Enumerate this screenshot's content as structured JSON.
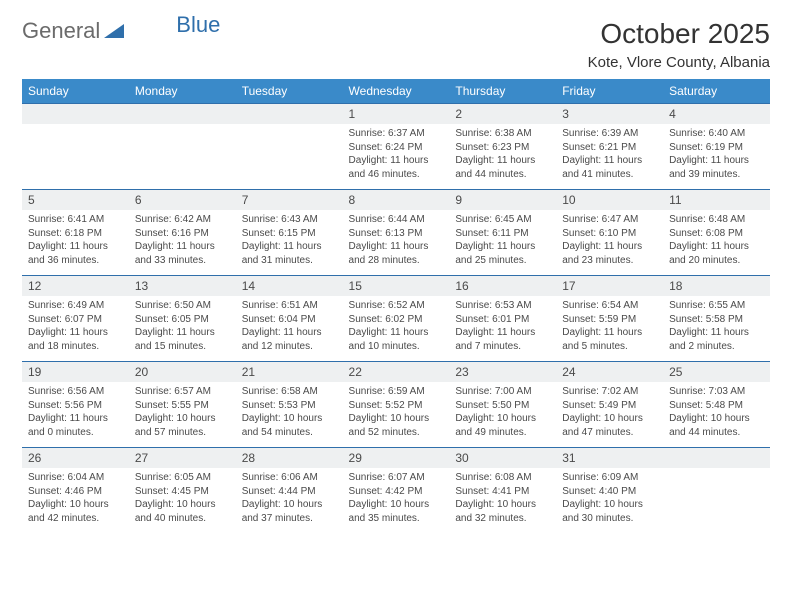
{
  "logo": {
    "word1": "General",
    "word2": "Blue"
  },
  "title": "October 2025",
  "location": "Kote, Vlore County, Albania",
  "colors": {
    "header_bg": "#3a8ac9",
    "header_text": "#ffffff",
    "daynum_bg": "#eef0f1",
    "border_top": "#2f6fab",
    "text": "#4a4a4a",
    "logo_gray": "#6b6b6b",
    "logo_blue": "#2f6fab"
  },
  "day_headers": [
    "Sunday",
    "Monday",
    "Tuesday",
    "Wednesday",
    "Thursday",
    "Friday",
    "Saturday"
  ],
  "weeks": [
    {
      "nums": [
        "",
        "",
        "",
        "1",
        "2",
        "3",
        "4"
      ],
      "cells": [
        null,
        null,
        null,
        {
          "sunrise": "Sunrise: 6:37 AM",
          "sunset": "Sunset: 6:24 PM",
          "day1": "Daylight: 11 hours",
          "day2": "and 46 minutes."
        },
        {
          "sunrise": "Sunrise: 6:38 AM",
          "sunset": "Sunset: 6:23 PM",
          "day1": "Daylight: 11 hours",
          "day2": "and 44 minutes."
        },
        {
          "sunrise": "Sunrise: 6:39 AM",
          "sunset": "Sunset: 6:21 PM",
          "day1": "Daylight: 11 hours",
          "day2": "and 41 minutes."
        },
        {
          "sunrise": "Sunrise: 6:40 AM",
          "sunset": "Sunset: 6:19 PM",
          "day1": "Daylight: 11 hours",
          "day2": "and 39 minutes."
        }
      ]
    },
    {
      "nums": [
        "5",
        "6",
        "7",
        "8",
        "9",
        "10",
        "11"
      ],
      "cells": [
        {
          "sunrise": "Sunrise: 6:41 AM",
          "sunset": "Sunset: 6:18 PM",
          "day1": "Daylight: 11 hours",
          "day2": "and 36 minutes."
        },
        {
          "sunrise": "Sunrise: 6:42 AM",
          "sunset": "Sunset: 6:16 PM",
          "day1": "Daylight: 11 hours",
          "day2": "and 33 minutes."
        },
        {
          "sunrise": "Sunrise: 6:43 AM",
          "sunset": "Sunset: 6:15 PM",
          "day1": "Daylight: 11 hours",
          "day2": "and 31 minutes."
        },
        {
          "sunrise": "Sunrise: 6:44 AM",
          "sunset": "Sunset: 6:13 PM",
          "day1": "Daylight: 11 hours",
          "day2": "and 28 minutes."
        },
        {
          "sunrise": "Sunrise: 6:45 AM",
          "sunset": "Sunset: 6:11 PM",
          "day1": "Daylight: 11 hours",
          "day2": "and 25 minutes."
        },
        {
          "sunrise": "Sunrise: 6:47 AM",
          "sunset": "Sunset: 6:10 PM",
          "day1": "Daylight: 11 hours",
          "day2": "and 23 minutes."
        },
        {
          "sunrise": "Sunrise: 6:48 AM",
          "sunset": "Sunset: 6:08 PM",
          "day1": "Daylight: 11 hours",
          "day2": "and 20 minutes."
        }
      ]
    },
    {
      "nums": [
        "12",
        "13",
        "14",
        "15",
        "16",
        "17",
        "18"
      ],
      "cells": [
        {
          "sunrise": "Sunrise: 6:49 AM",
          "sunset": "Sunset: 6:07 PM",
          "day1": "Daylight: 11 hours",
          "day2": "and 18 minutes."
        },
        {
          "sunrise": "Sunrise: 6:50 AM",
          "sunset": "Sunset: 6:05 PM",
          "day1": "Daylight: 11 hours",
          "day2": "and 15 minutes."
        },
        {
          "sunrise": "Sunrise: 6:51 AM",
          "sunset": "Sunset: 6:04 PM",
          "day1": "Daylight: 11 hours",
          "day2": "and 12 minutes."
        },
        {
          "sunrise": "Sunrise: 6:52 AM",
          "sunset": "Sunset: 6:02 PM",
          "day1": "Daylight: 11 hours",
          "day2": "and 10 minutes."
        },
        {
          "sunrise": "Sunrise: 6:53 AM",
          "sunset": "Sunset: 6:01 PM",
          "day1": "Daylight: 11 hours",
          "day2": "and 7 minutes."
        },
        {
          "sunrise": "Sunrise: 6:54 AM",
          "sunset": "Sunset: 5:59 PM",
          "day1": "Daylight: 11 hours",
          "day2": "and 5 minutes."
        },
        {
          "sunrise": "Sunrise: 6:55 AM",
          "sunset": "Sunset: 5:58 PM",
          "day1": "Daylight: 11 hours",
          "day2": "and 2 minutes."
        }
      ]
    },
    {
      "nums": [
        "19",
        "20",
        "21",
        "22",
        "23",
        "24",
        "25"
      ],
      "cells": [
        {
          "sunrise": "Sunrise: 6:56 AM",
          "sunset": "Sunset: 5:56 PM",
          "day1": "Daylight: 11 hours",
          "day2": "and 0 minutes."
        },
        {
          "sunrise": "Sunrise: 6:57 AM",
          "sunset": "Sunset: 5:55 PM",
          "day1": "Daylight: 10 hours",
          "day2": "and 57 minutes."
        },
        {
          "sunrise": "Sunrise: 6:58 AM",
          "sunset": "Sunset: 5:53 PM",
          "day1": "Daylight: 10 hours",
          "day2": "and 54 minutes."
        },
        {
          "sunrise": "Sunrise: 6:59 AM",
          "sunset": "Sunset: 5:52 PM",
          "day1": "Daylight: 10 hours",
          "day2": "and 52 minutes."
        },
        {
          "sunrise": "Sunrise: 7:00 AM",
          "sunset": "Sunset: 5:50 PM",
          "day1": "Daylight: 10 hours",
          "day2": "and 49 minutes."
        },
        {
          "sunrise": "Sunrise: 7:02 AM",
          "sunset": "Sunset: 5:49 PM",
          "day1": "Daylight: 10 hours",
          "day2": "and 47 minutes."
        },
        {
          "sunrise": "Sunrise: 7:03 AM",
          "sunset": "Sunset: 5:48 PM",
          "day1": "Daylight: 10 hours",
          "day2": "and 44 minutes."
        }
      ]
    },
    {
      "nums": [
        "26",
        "27",
        "28",
        "29",
        "30",
        "31",
        ""
      ],
      "cells": [
        {
          "sunrise": "Sunrise: 6:04 AM",
          "sunset": "Sunset: 4:46 PM",
          "day1": "Daylight: 10 hours",
          "day2": "and 42 minutes."
        },
        {
          "sunrise": "Sunrise: 6:05 AM",
          "sunset": "Sunset: 4:45 PM",
          "day1": "Daylight: 10 hours",
          "day2": "and 40 minutes."
        },
        {
          "sunrise": "Sunrise: 6:06 AM",
          "sunset": "Sunset: 4:44 PM",
          "day1": "Daylight: 10 hours",
          "day2": "and 37 minutes."
        },
        {
          "sunrise": "Sunrise: 6:07 AM",
          "sunset": "Sunset: 4:42 PM",
          "day1": "Daylight: 10 hours",
          "day2": "and 35 minutes."
        },
        {
          "sunrise": "Sunrise: 6:08 AM",
          "sunset": "Sunset: 4:41 PM",
          "day1": "Daylight: 10 hours",
          "day2": "and 32 minutes."
        },
        {
          "sunrise": "Sunrise: 6:09 AM",
          "sunset": "Sunset: 4:40 PM",
          "day1": "Daylight: 10 hours",
          "day2": "and 30 minutes."
        },
        null
      ]
    }
  ]
}
